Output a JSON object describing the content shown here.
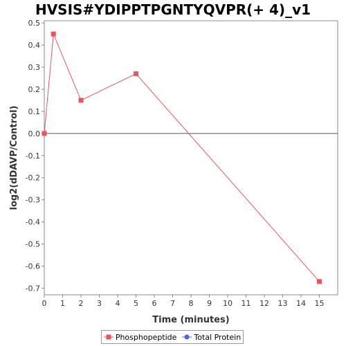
{
  "chart_data": {
    "type": "line",
    "title": "HVSIS#YDIPPTPGNTYQVPR(+ 4)_v1",
    "xlabel": "Time (minutes)",
    "ylabel": "log2(dDAVP/Control)",
    "xlim": [
      0,
      16
    ],
    "ylim": [
      -0.73,
      0.51
    ],
    "x_ticks": [
      0,
      1,
      2,
      3,
      4,
      5,
      6,
      7,
      8,
      9,
      10,
      11,
      12,
      13,
      14,
      15
    ],
    "y_ticks": [
      -0.7,
      -0.6,
      -0.5,
      -0.4,
      -0.3,
      -0.2,
      -0.1,
      0.0,
      0.1,
      0.2,
      0.3,
      0.4,
      0.5
    ],
    "y_tick_labels": [
      "-0.7",
      "-0.6",
      "-0.5",
      "-0.4",
      "-0.3",
      "-0.2",
      "-0.1",
      "0.0",
      "0.1",
      "0.2",
      "0.3",
      "0.4",
      "0.5"
    ],
    "grid": false,
    "zero_line": true,
    "series": [
      {
        "name": "Phosphopeptide",
        "color": "#e8555a",
        "marker": "square",
        "x": [
          0,
          0.5,
          2,
          5,
          15
        ],
        "y": [
          0.0,
          0.45,
          0.15,
          0.27,
          -0.67
        ]
      },
      {
        "name": "Total Protein",
        "color": "#5560e8",
        "marker": "circle",
        "x": [],
        "y": []
      }
    ],
    "legend": {
      "placement": "bottom-center"
    }
  }
}
